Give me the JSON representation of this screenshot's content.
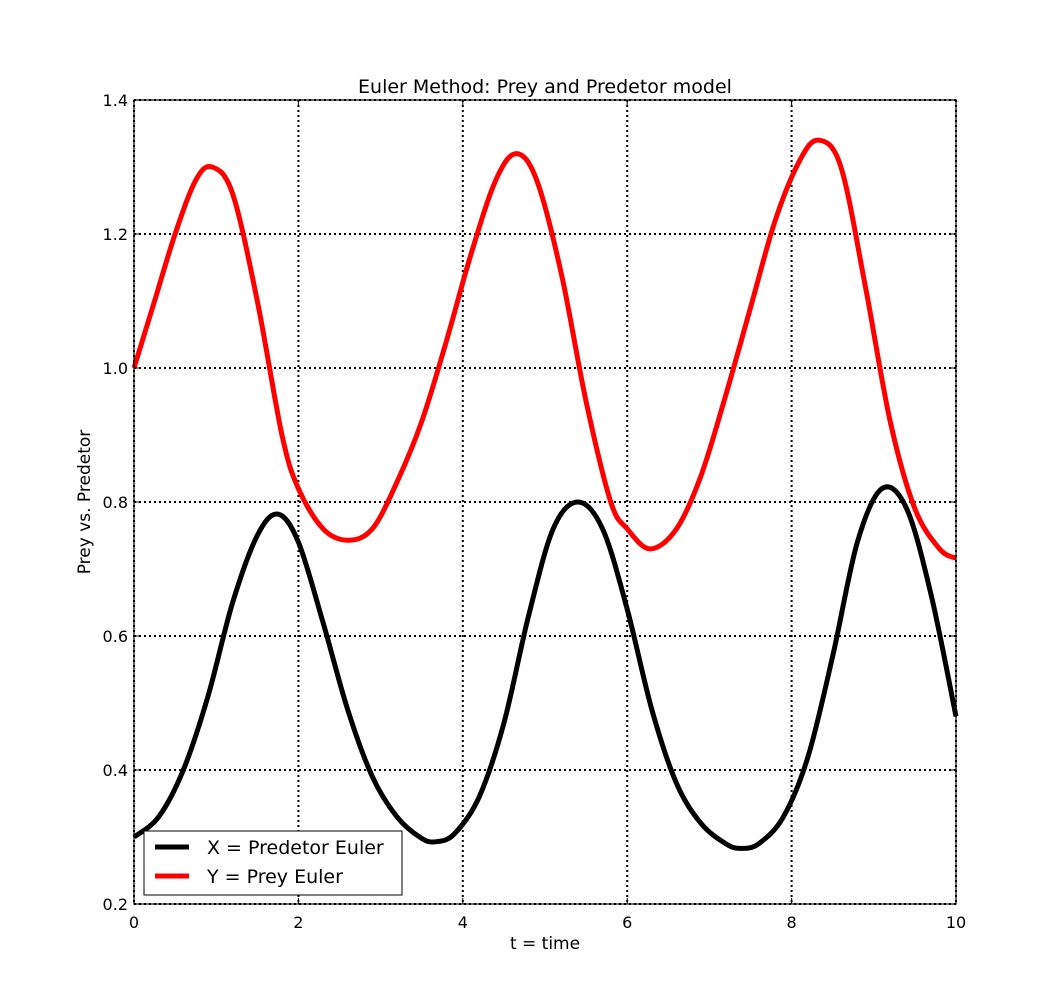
{
  "chart_data": {
    "type": "line",
    "title": "Euler Method: Prey and Predetor model",
    "xlabel": "t = time",
    "ylabel": "Prey vs. Predetor",
    "xlim": [
      0,
      10
    ],
    "ylim": [
      0.2,
      1.4
    ],
    "xticks": [
      0,
      2,
      4,
      6,
      8,
      10
    ],
    "xtick_labels": [
      "0",
      "2",
      "4",
      "6",
      "8",
      "10"
    ],
    "yticks": [
      0.2,
      0.4,
      0.6,
      0.8,
      1.0,
      1.2,
      1.4
    ],
    "ytick_labels": [
      "0.2",
      "0.4",
      "0.6",
      "0.8",
      "1.0",
      "1.2",
      "1.4"
    ],
    "grid": true,
    "legend_position": "lower-left",
    "series": [
      {
        "name": "X = Predetor Euler",
        "color": "#000000",
        "x": [
          0,
          0.3,
          0.6,
          0.9,
          1.2,
          1.5,
          1.75,
          2.0,
          2.3,
          2.6,
          2.9,
          3.2,
          3.5,
          3.68,
          3.9,
          4.2,
          4.5,
          4.8,
          5.1,
          5.4,
          5.7,
          6.0,
          6.3,
          6.6,
          6.9,
          7.2,
          7.38,
          7.6,
          7.9,
          8.2,
          8.5,
          8.8,
          9.1,
          9.4,
          9.7,
          10.0
        ],
        "y": [
          0.3,
          0.33,
          0.4,
          0.51,
          0.65,
          0.75,
          0.782,
          0.74,
          0.62,
          0.49,
          0.39,
          0.33,
          0.298,
          0.293,
          0.305,
          0.36,
          0.47,
          0.63,
          0.76,
          0.8,
          0.76,
          0.64,
          0.49,
          0.38,
          0.32,
          0.29,
          0.283,
          0.29,
          0.33,
          0.42,
          0.57,
          0.74,
          0.82,
          0.79,
          0.66,
          0.48
        ]
      },
      {
        "name": "Y = Prey Euler",
        "color": "#ff0000",
        "x": [
          0,
          0.25,
          0.5,
          0.75,
          0.95,
          1.2,
          1.5,
          1.8,
          2.0,
          2.3,
          2.6,
          2.9,
          3.2,
          3.5,
          3.8,
          4.1,
          4.4,
          4.65,
          4.9,
          5.2,
          5.5,
          5.8,
          6.0,
          6.28,
          6.6,
          6.9,
          7.2,
          7.5,
          7.8,
          8.1,
          8.33,
          8.6,
          8.9,
          9.2,
          9.5,
          9.8,
          10.0
        ],
        "y": [
          1.0,
          1.1,
          1.2,
          1.28,
          1.3,
          1.26,
          1.1,
          0.9,
          0.82,
          0.76,
          0.743,
          0.76,
          0.83,
          0.92,
          1.04,
          1.17,
          1.28,
          1.32,
          1.28,
          1.14,
          0.95,
          0.8,
          0.76,
          0.73,
          0.76,
          0.84,
          0.96,
          1.09,
          1.22,
          1.31,
          1.34,
          1.3,
          1.12,
          0.92,
          0.79,
          0.73,
          0.716
        ]
      }
    ]
  }
}
